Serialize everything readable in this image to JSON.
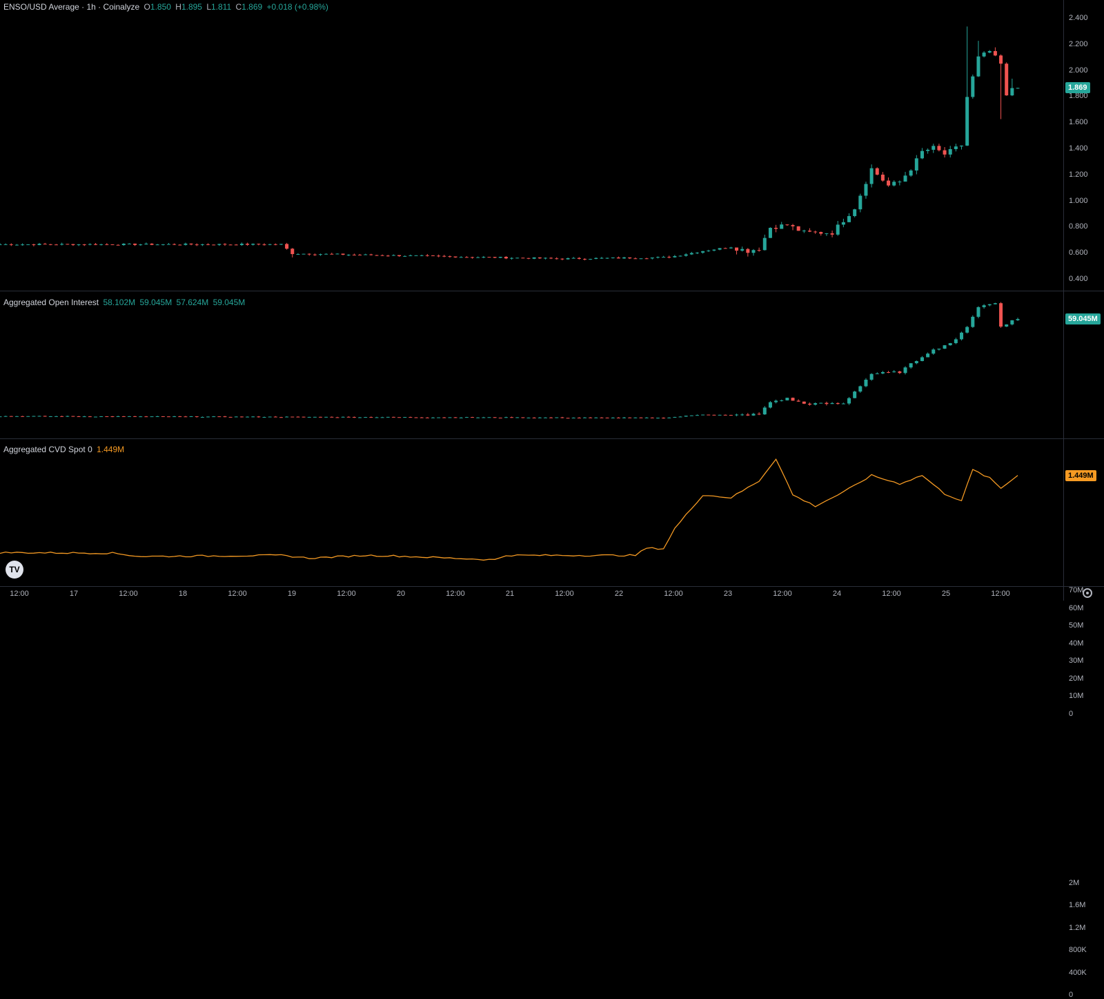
{
  "header": {
    "symbol": "ENSO/USD Average · 1h · Coinalyze",
    "o_label": "O",
    "o": "1.850",
    "h_label": "H",
    "h": "1.895",
    "l_label": "L",
    "l": "1.811",
    "c_label": "C",
    "c": "1.869",
    "change": "+0.018 (+0.98%)"
  },
  "oi_legend": {
    "title": "Aggregated Open Interest",
    "o": "58.102M",
    "h": "59.045M",
    "l": "57.624M",
    "c": "59.045M"
  },
  "cvd_legend": {
    "title": "Aggregated CVD Spot 0",
    "value": "1.449M"
  },
  "colors": {
    "up": "#26a69a",
    "down": "#ef5350",
    "cvd": "#f59a23",
    "background": "#000000"
  },
  "badges": {
    "price": "1.869",
    "oi": "59.045M",
    "cvd": "1.449M"
  },
  "logo_text": "TV",
  "icons": [
    "tradingview-logo-icon",
    "settings-gear-icon"
  ],
  "chart_data": [
    {
      "type": "candlestick",
      "ylim": [
        0.4,
        2.4
      ],
      "yticks": [
        "2.400",
        "2.200",
        "2.000",
        "1.800",
        "1.600",
        "1.400",
        "1.200",
        "1.000",
        "0.800",
        "0.600",
        "0.400"
      ],
      "xticks": [
        "12:00",
        "17",
        "12:00",
        "18",
        "12:00",
        "19",
        "12:00",
        "20",
        "12:00",
        "21",
        "12:00",
        "22",
        "12:00",
        "23",
        "12:00",
        "24",
        "12:00",
        "25",
        "12:00"
      ],
      "anchors_close": [
        [
          0,
          0.67
        ],
        [
          50,
          0.67
        ],
        [
          52,
          0.6
        ],
        [
          100,
          0.56
        ],
        [
          118,
          0.57
        ],
        [
          120,
          0.58
        ],
        [
          125,
          0.62
        ],
        [
          130,
          0.65
        ],
        [
          133,
          0.62
        ],
        [
          135,
          0.64
        ],
        [
          137,
          0.8
        ],
        [
          140,
          0.82
        ],
        [
          143,
          0.76
        ],
        [
          148,
          0.76
        ],
        [
          152,
          0.95
        ],
        [
          155,
          1.25
        ],
        [
          158,
          1.12
        ],
        [
          160,
          1.15
        ],
        [
          162,
          1.25
        ],
        [
          164,
          1.38
        ],
        [
          166,
          1.41
        ],
        [
          168,
          1.36
        ],
        [
          171,
          1.43
        ],
        [
          172,
          1.8
        ],
        [
          174,
          2.1
        ],
        [
          176,
          2.15
        ],
        [
          178,
          2.05
        ],
        [
          179,
          1.8
        ],
        [
          180,
          1.87
        ],
        [
          181,
          1.869
        ]
      ],
      "spikes_high": [
        [
          172,
          2.34
        ],
        [
          174,
          2.23
        ],
        [
          177,
          2.18
        ],
        [
          180,
          1.94
        ]
      ],
      "spikes_low": [
        [
          52,
          0.57
        ],
        [
          178,
          1.63
        ]
      ]
    },
    {
      "type": "candlestick",
      "ylim": [
        0,
        70
      ],
      "yticks": [
        "70M",
        "60M",
        "50M",
        "40M",
        "30M",
        "20M",
        "10M",
        "0"
      ],
      "anchors_close": [
        [
          0,
          4
        ],
        [
          118,
          3
        ],
        [
          120,
          3.5
        ],
        [
          125,
          5
        ],
        [
          130,
          4.5
        ],
        [
          135,
          5
        ],
        [
          137,
          12
        ],
        [
          140,
          14
        ],
        [
          143,
          11
        ],
        [
          150,
          11
        ],
        [
          152,
          18
        ],
        [
          155,
          28
        ],
        [
          160,
          29
        ],
        [
          165,
          40
        ],
        [
          170,
          47
        ],
        [
          172,
          55
        ],
        [
          174,
          66
        ],
        [
          177,
          68
        ],
        [
          178,
          55
        ],
        [
          180,
          58
        ],
        [
          181,
          59
        ]
      ]
    },
    {
      "type": "line",
      "ylim": [
        0,
        2000000
      ],
      "yticks": [
        "2M",
        "1.6M",
        "1.2M",
        "800K",
        "400K",
        "0"
      ],
      "anchors": [
        [
          0,
          0.07
        ],
        [
          20,
          0.06
        ],
        [
          25,
          0.0
        ],
        [
          50,
          0.02
        ],
        [
          55,
          -0.03
        ],
        [
          65,
          0.02
        ],
        [
          70,
          0.01
        ],
        [
          88,
          -0.06
        ],
        [
          90,
          0.02
        ],
        [
          113,
          0.02
        ],
        [
          115,
          0.15
        ],
        [
          118,
          0.14
        ],
        [
          120,
          0.5
        ],
        [
          125,
          1.1
        ],
        [
          130,
          1.05
        ],
        [
          135,
          1.35
        ],
        [
          138,
          1.75
        ],
        [
          141,
          1.1
        ],
        [
          145,
          0.9
        ],
        [
          150,
          1.15
        ],
        [
          155,
          1.45
        ],
        [
          160,
          1.3
        ],
        [
          164,
          1.45
        ],
        [
          168,
          1.12
        ],
        [
          171,
          1.0
        ],
        [
          173,
          1.55
        ],
        [
          176,
          1.4
        ],
        [
          178,
          1.22
        ],
        [
          181,
          1.449
        ]
      ]
    }
  ]
}
